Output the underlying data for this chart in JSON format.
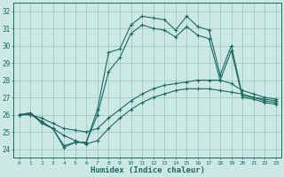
{
  "xlabel": "Humidex (Indice chaleur)",
  "xlim": [
    -0.5,
    23.5
  ],
  "ylim": [
    23.5,
    32.5
  ],
  "yticks": [
    24,
    25,
    26,
    27,
    28,
    29,
    30,
    31,
    32
  ],
  "xticks": [
    0,
    1,
    2,
    3,
    4,
    5,
    6,
    7,
    8,
    9,
    10,
    11,
    12,
    13,
    14,
    15,
    16,
    17,
    18,
    19,
    20,
    21,
    22,
    23
  ],
  "background_color": "#cce8e4",
  "grid_color": "#a8cdc9",
  "line_color": "#1a6b60",
  "line1_y": [
    26.0,
    26.1,
    25.6,
    25.2,
    24.2,
    24.4,
    24.4,
    26.3,
    29.6,
    29.8,
    31.2,
    31.7,
    31.6,
    31.5,
    30.9,
    31.7,
    31.1,
    30.9,
    28.3,
    30.0,
    27.1,
    27.0,
    26.8,
    26.7
  ],
  "line2_y": [
    26.0,
    26.1,
    25.5,
    25.2,
    24.1,
    24.4,
    24.4,
    26.0,
    28.5,
    29.3,
    30.7,
    31.2,
    31.0,
    30.9,
    30.5,
    31.1,
    30.6,
    30.4,
    28.0,
    29.7,
    27.0,
    26.9,
    26.7,
    26.6
  ],
  "line3_y": [
    26.0,
    26.0,
    25.8,
    25.5,
    25.2,
    25.1,
    25.0,
    25.2,
    25.8,
    26.3,
    26.8,
    27.2,
    27.5,
    27.7,
    27.8,
    27.9,
    28.0,
    28.0,
    28.0,
    27.8,
    27.4,
    27.2,
    27.0,
    26.9
  ],
  "line4_y": [
    26.0,
    26.0,
    25.6,
    25.2,
    24.8,
    24.5,
    24.3,
    24.5,
    25.2,
    25.8,
    26.3,
    26.7,
    27.0,
    27.2,
    27.4,
    27.5,
    27.5,
    27.5,
    27.4,
    27.3,
    27.2,
    27.0,
    26.9,
    26.8
  ]
}
